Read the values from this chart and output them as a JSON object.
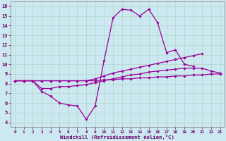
{
  "xlabel": "Windchill (Refroidissement éolien,°C)",
  "ylabel": "",
  "background_color": "#cce8f0",
  "grid_color": "#b0d8c8",
  "line_color": "#990099",
  "x": [
    0,
    1,
    2,
    3,
    4,
    5,
    6,
    7,
    8,
    9,
    10,
    11,
    12,
    13,
    14,
    15,
    16,
    17,
    18,
    19,
    20,
    21,
    22,
    23
  ],
  "line1": [
    8.3,
    8.3,
    8.3,
    7.2,
    6.7,
    6.0,
    5.8,
    5.7,
    4.3,
    5.7,
    10.4,
    14.8,
    15.7,
    15.6,
    15.0,
    15.7,
    14.3,
    11.2,
    11.5,
    10.0,
    9.8,
    null,
    null,
    null
  ],
  "line2": [
    8.3,
    8.3,
    8.3,
    8.3,
    8.3,
    8.3,
    8.3,
    8.3,
    8.3,
    8.5,
    8.8,
    9.1,
    9.3,
    9.5,
    9.7,
    9.9,
    10.1,
    10.3,
    10.5,
    10.7,
    10.9,
    11.1,
    null,
    null
  ],
  "line3": [
    8.3,
    8.3,
    8.3,
    7.5,
    7.5,
    7.7,
    7.7,
    7.8,
    7.9,
    8.1,
    8.3,
    8.5,
    8.7,
    8.9,
    9.0,
    9.2,
    9.3,
    9.4,
    9.5,
    9.6,
    9.6,
    9.6,
    9.3,
    9.1
  ],
  "line4": [
    8.3,
    8.3,
    8.3,
    8.3,
    8.3,
    8.3,
    8.3,
    8.3,
    8.3,
    8.3,
    8.4,
    8.4,
    8.5,
    8.5,
    8.6,
    8.6,
    8.7,
    8.7,
    8.8,
    8.8,
    8.9,
    8.9,
    9.0,
    9.0
  ],
  "xlim": [
    -0.5,
    23.5
  ],
  "ylim": [
    3.5,
    16.5
  ],
  "yticks": [
    4,
    5,
    6,
    7,
    8,
    9,
    10,
    11,
    12,
    13,
    14,
    15,
    16
  ],
  "xticks": [
    0,
    1,
    2,
    3,
    4,
    5,
    6,
    7,
    8,
    9,
    10,
    11,
    12,
    13,
    14,
    15,
    16,
    17,
    18,
    19,
    20,
    21,
    22,
    23
  ],
  "xlabel_color": "#660066",
  "tick_color": "#660066",
  "marker_size": 1.8,
  "line_width": 0.9
}
